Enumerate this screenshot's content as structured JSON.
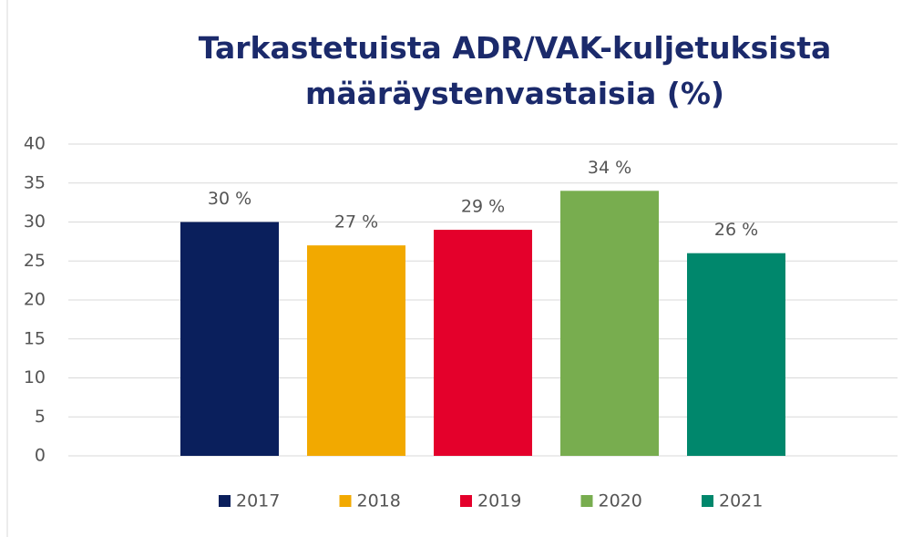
{
  "chart_data": {
    "type": "bar",
    "title": "Tarkastetuista ADR/VAK-kuljetuksista määräystenvastaisia (%)",
    "categories": [
      null
    ],
    "series": [
      {
        "name": "2017",
        "color": "#0a1f5c",
        "values": [
          30
        ],
        "value_labels": [
          "30 %"
        ]
      },
      {
        "name": "2018",
        "color": "#f2a900",
        "values": [
          27
        ],
        "value_labels": [
          "27 %"
        ]
      },
      {
        "name": "2019",
        "color": "#e4002b",
        "values": [
          29
        ],
        "value_labels": [
          "29 %"
        ]
      },
      {
        "name": "2020",
        "color": "#78ad4f",
        "values": [
          34
        ],
        "value_labels": [
          "34 %"
        ]
      },
      {
        "name": "2021",
        "color": "#00876c",
        "values": [
          26
        ],
        "value_labels": [
          "26 %"
        ]
      }
    ],
    "ylim": [
      0,
      40
    ],
    "yticks": [
      0,
      5,
      10,
      15,
      20,
      25,
      30,
      35,
      40
    ],
    "grid": true,
    "legend": "bottom"
  }
}
